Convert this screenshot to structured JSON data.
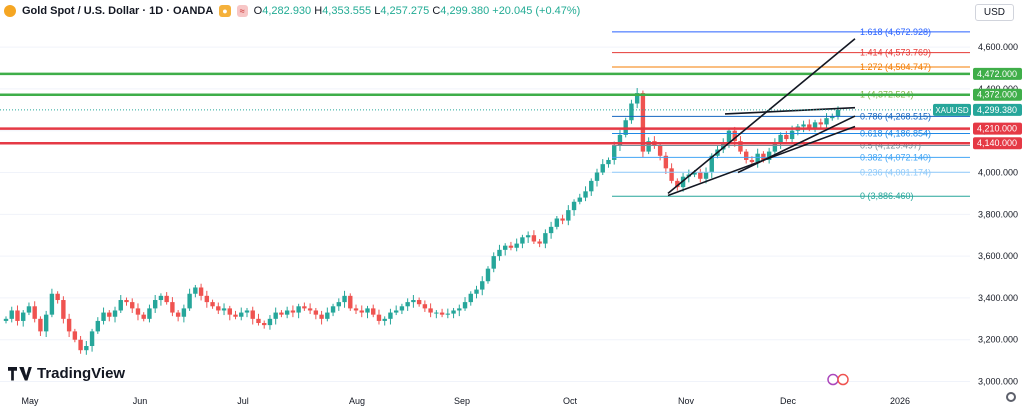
{
  "header": {
    "symbol": "Gold Spot / U.S. Dollar · 1D · OANDA",
    "badge_a": "≈",
    "open_label": "O",
    "open": "4,282.930",
    "high_label": "H",
    "high": "4,353.555",
    "low_label": "L",
    "low": "4,257.275",
    "close_label": "C",
    "close": "4,299.380",
    "change": "+20.045 (+0.47%)"
  },
  "currency_button": "USD",
  "brand": "TradingView",
  "colors": {
    "up": "#26a69a",
    "down": "#ef5350",
    "support": "#e53945",
    "resistance": "#3fae49"
  },
  "chart_data": {
    "type": "candlestick",
    "ylim": [
      2950,
      4720
    ],
    "y_ticks": [
      3000,
      3200,
      3400,
      3600,
      3800,
      4000,
      4200,
      4400,
      4600
    ],
    "y_tick_labels": [
      "3,000.000",
      "3,200.000",
      "3,400.000",
      "3,600.000",
      "3,800.000",
      "4,000.000",
      "4,200.000",
      "4,400.000",
      "4,600.000"
    ],
    "x_labels": [
      "May",
      "Jun",
      "Jul",
      "Aug",
      "Sep",
      "Oct",
      "Nov",
      "Dec",
      "2026"
    ],
    "last_price": {
      "label": "XAUUSD",
      "value": 4299.38,
      "text": "4,299.380"
    },
    "horizontal_levels": [
      {
        "value": 4472,
        "text": "4,472.000",
        "kind": "resistance"
      },
      {
        "value": 4372,
        "text": "4,372.000",
        "kind": "resistance"
      },
      {
        "value": 4210,
        "text": "4,210.000",
        "kind": "support"
      },
      {
        "value": 4140,
        "text": "4,140.000",
        "kind": "support"
      }
    ],
    "fibonacci": [
      {
        "ratio": "1.618",
        "value": 4672.928,
        "text": "1.618 (4,672.928)",
        "color": "#2962ff"
      },
      {
        "ratio": "1.414",
        "value": 4573.769,
        "text": "1.414 (4,573.769)",
        "color": "#e53935"
      },
      {
        "ratio": "1.272",
        "value": 4504.747,
        "text": "1.272 (4,504.747)",
        "color": "#f57c00"
      },
      {
        "ratio": "1",
        "value": 4372.524,
        "text": "1 (4,372.524)",
        "color": "#7cb342"
      },
      {
        "ratio": "0.786",
        "value": 4268.515,
        "text": "0.786 (4,268.515)",
        "color": "#1565c0"
      },
      {
        "ratio": "0.618",
        "value": 4186.854,
        "text": "0.618 (4,186.854)",
        "color": "#1e88e5"
      },
      {
        "ratio": "0.5",
        "value": 4129.497,
        "text": "0.5 (4,129.497)",
        "color": "#78909c"
      },
      {
        "ratio": "0.382",
        "value": 4072.14,
        "text": "0.382 (4,072.140)",
        "color": "#42a5f5"
      },
      {
        "ratio": "0.236",
        "value": 4001.174,
        "text": "0.236 (4,001.174)",
        "color": "#90caf9"
      },
      {
        "ratio": "0",
        "value": 3886.46,
        "text": "0 (3,886.460)",
        "color": "#26a69a"
      }
    ],
    "closes": [
      3300,
      3340,
      3290,
      3330,
      3360,
      3300,
      3240,
      3320,
      3420,
      3390,
      3300,
      3240,
      3200,
      3150,
      3170,
      3240,
      3290,
      3330,
      3310,
      3340,
      3390,
      3380,
      3350,
      3320,
      3300,
      3350,
      3390,
      3410,
      3380,
      3330,
      3310,
      3350,
      3420,
      3450,
      3410,
      3380,
      3360,
      3340,
      3350,
      3320,
      3310,
      3330,
      3340,
      3300,
      3280,
      3270,
      3300,
      3330,
      3320,
      3340,
      3330,
      3360,
      3350,
      3340,
      3320,
      3300,
      3330,
      3360,
      3380,
      3410,
      3350,
      3340,
      3330,
      3350,
      3320,
      3290,
      3300,
      3330,
      3340,
      3360,
      3380,
      3390,
      3370,
      3350,
      3330,
      3330,
      3320,
      3325,
      3340,
      3350,
      3380,
      3420,
      3440,
      3480,
      3540,
      3600,
      3630,
      3650,
      3640,
      3660,
      3690,
      3700,
      3670,
      3660,
      3710,
      3740,
      3780,
      3770,
      3820,
      3860,
      3880,
      3910,
      3960,
      4000,
      4040,
      4060,
      4130,
      4180,
      4250,
      4330,
      4380,
      4100,
      4150,
      4130,
      4080,
      4020,
      3960,
      3930,
      3980,
      3990,
      4000,
      3970,
      4000,
      4080,
      4110,
      4140,
      4200,
      4150,
      4100,
      4060,
      4050,
      4090,
      4060,
      4100,
      4140,
      4180,
      4160,
      4200,
      4220,
      4230,
      4210,
      4240,
      4230,
      4260,
      4270,
      4299
    ]
  }
}
